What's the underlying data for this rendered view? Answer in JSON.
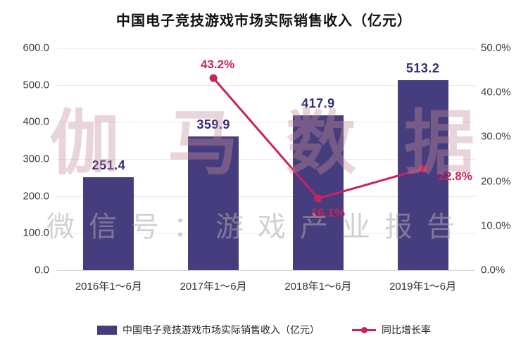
{
  "chart_data": {
    "type": "bar",
    "title": "中国电子竞技游戏市场实际销售收入（亿元）",
    "categories": [
      "2016年1～6月",
      "2017年1～6月",
      "2018年1～6月",
      "2019年1～6月"
    ],
    "series": [
      {
        "name": "中国电子竞技游戏市场实际销售收入（亿元）",
        "type": "bar",
        "axis": "left",
        "color": "#463D7E",
        "values": [
          251.4,
          359.9,
          417.9,
          513.2
        ]
      },
      {
        "name": "同比增长率",
        "type": "line",
        "axis": "right",
        "color": "#C8235C",
        "values": [
          null,
          43.2,
          16.1,
          22.8
        ]
      }
    ],
    "bar_labels": [
      "251.4",
      "359.9",
      "417.9",
      "513.2"
    ],
    "bar_label_color": "#332D70",
    "line_labels": [
      "43.2%",
      "16.1%",
      "22.8%"
    ],
    "left_axis": {
      "min": 0,
      "max": 600,
      "step": 100,
      "ticks": [
        "600.0",
        "500.0",
        "400.0",
        "300.0",
        "200.0",
        "100.0",
        "0.0"
      ]
    },
    "right_axis": {
      "min": 0,
      "max": 50,
      "step": 10,
      "ticks": [
        "50.0%",
        "40.0%",
        "30.0%",
        "20.0%",
        "10.0%",
        "0.0%"
      ]
    },
    "grid": true,
    "legend_position": "bottom"
  },
  "legend": {
    "bar_label": "中国电子竞技游戏市场实际销售收入（亿元）",
    "line_label": "同比增长率"
  },
  "watermark": {
    "line1": "伽马数据",
    "line2": "微信号：游戏产业报告"
  }
}
